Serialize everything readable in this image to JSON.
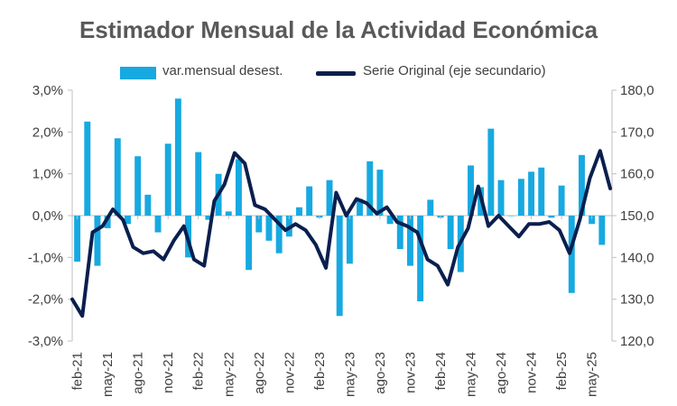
{
  "chart_data": {
    "type": "bar+line",
    "title": "Estimador Mensual de la Actividad Económica",
    "colors": {
      "bars": "#17a9e1",
      "line": "#0a1f4e",
      "axis": "#bfbfbf",
      "text": "#404040",
      "title": "#595959"
    },
    "legend": {
      "position": "top",
      "bar_label": "var.mensual desest.",
      "line_label": "Serie Original (eje secundario)"
    },
    "y_left": {
      "min": -3.0,
      "max": 3.0,
      "step": 1.0,
      "tick_labels": [
        "3,0%",
        "2,0%",
        "1,0%",
        "0,0%",
        "-1,0%",
        "-2,0%",
        "-3,0%"
      ]
    },
    "y_right": {
      "min": 120,
      "max": 180,
      "step": 10,
      "tick_labels": [
        "180,0",
        "170,0",
        "160,0",
        "150,0",
        "140,0",
        "130,0",
        "120,0"
      ]
    },
    "x_tick_labels": [
      "feb-21",
      "may-21",
      "ago-21",
      "nov-21",
      "feb-22",
      "may-22",
      "ago-22",
      "nov-22",
      "feb-23",
      "may-23",
      "ago-23",
      "nov-23",
      "feb-24",
      "may-24",
      "ago-24",
      "nov-24",
      "feb-25",
      "may-25"
    ],
    "series": [
      {
        "name": "var.mensual desest.",
        "type": "bar",
        "axis": "left",
        "values": [
          -1.1,
          2.25,
          -1.2,
          -0.3,
          1.85,
          -0.2,
          1.42,
          0.5,
          -0.4,
          1.72,
          2.8,
          -1.0,
          1.52,
          -0.1,
          1.0,
          0.1,
          1.35,
          -1.3,
          -0.4,
          -0.6,
          -0.9,
          -0.5,
          0.2,
          0.7,
          -0.05,
          0.85,
          -2.4,
          -1.15,
          0.4,
          1.3,
          1.1,
          -0.2,
          -0.8,
          -1.2,
          -2.05,
          0.38,
          -0.05,
          -0.8,
          -1.35,
          1.2,
          0.68,
          2.08,
          0.85,
          0.0,
          0.88,
          1.05,
          1.15,
          -0.05,
          0.72,
          -1.85,
          1.45,
          -0.2,
          -0.7
        ]
      },
      {
        "name": "Serie Original (eje secundario)",
        "type": "line",
        "axis": "right",
        "values": [
          130.0,
          126.0,
          146.0,
          147.5,
          151.5,
          149.0,
          142.5,
          141.0,
          141.5,
          139.5,
          144.0,
          147.5,
          139.5,
          138.0,
          153.5,
          157.5,
          165.0,
          162.5,
          152.5,
          151.5,
          149.0,
          146.5,
          148.0,
          146.5,
          143.0,
          137.5,
          155.5,
          150.0,
          154.0,
          153.0,
          150.5,
          152.0,
          148.5,
          147.5,
          146.0,
          139.5,
          138.0,
          133.5,
          142.5,
          147.0,
          157.0,
          147.5,
          150.0,
          147.5,
          145.0,
          148.0,
          148.0,
          148.5,
          146.5,
          141.0,
          149.0,
          159.0,
          165.5,
          156.5
        ]
      }
    ]
  }
}
